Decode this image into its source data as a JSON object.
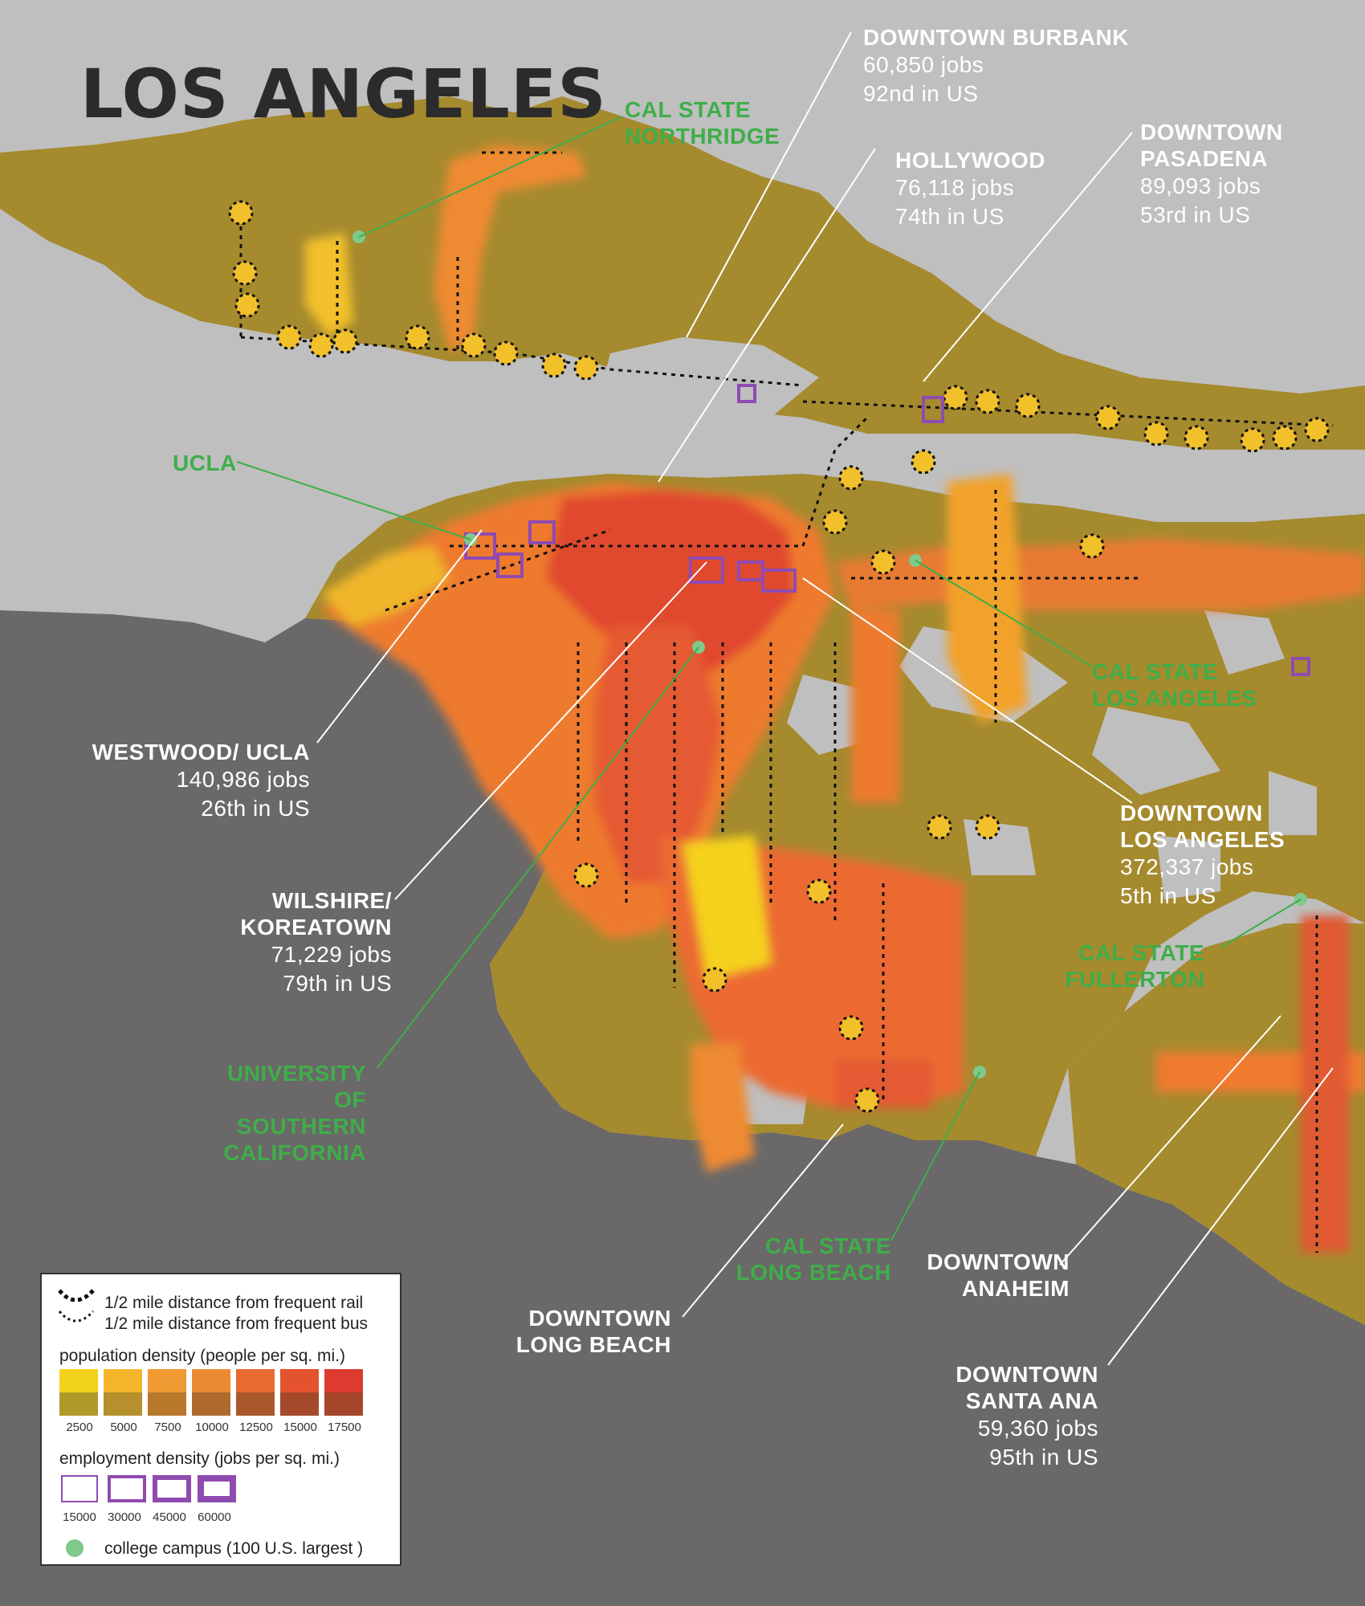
{
  "title": "LOS ANGELES",
  "labels": {
    "burbank": {
      "name": "DOWNTOWN BURBANK",
      "jobs": "60,850 jobs",
      "rank": "92nd in US"
    },
    "hollywood": {
      "name": "HOLLYWOOD",
      "jobs": "76,118 jobs",
      "rank": "74th in US"
    },
    "pasadena": {
      "name1": "DOWNTOWN",
      "name2": "PASADENA",
      "jobs": "89,093 jobs",
      "rank": "53rd in US"
    },
    "westwood": {
      "name": "WESTWOOD/ UCLA",
      "jobs": "140,986 jobs",
      "rank": "26th in US"
    },
    "wilshire": {
      "name1": "WILSHIRE/",
      "name2": "KOREATOWN",
      "jobs": "71,229 jobs",
      "rank": "79th in US"
    },
    "dtla": {
      "name1": "DOWNTOWN",
      "name2": "LOS ANGELES",
      "jobs": "372,337 jobs",
      "rank": "5th in US"
    },
    "longbeach": {
      "name1": "DOWNTOWN",
      "name2": "LONG BEACH"
    },
    "anaheim": {
      "name1": "DOWNTOWN",
      "name2": "ANAHEIM"
    },
    "santaana": {
      "name1": "DOWNTOWN",
      "name2": "SANTA ANA",
      "jobs": "59,360 jobs",
      "rank": "95th in US"
    }
  },
  "campuses": {
    "northridge": {
      "line1": "CAL STATE",
      "line2": "NORTHRIDGE"
    },
    "ucla": {
      "line1": "UCLA"
    },
    "csula": {
      "line1": "CAL STATE",
      "line2": "LOS ANGELES"
    },
    "fullerton": {
      "line1": "CAL STATE",
      "line2": "FULLERTON"
    },
    "usc": {
      "line1": "UNIVERSITY",
      "line2": "OF",
      "line3": "SOUTHERN",
      "line4": "CALIFORNIA"
    },
    "csulb": {
      "line1": "CAL STATE",
      "line2": "LONG BEACH"
    }
  },
  "legend": {
    "rail": "1/2 mile distance from frequent rail",
    "bus": "1/2 mile distance from frequent bus",
    "pop_title": "population density (people per sq. mi.)",
    "pop_values": [
      "2500",
      "5000",
      "7500",
      "10000",
      "12500",
      "15000",
      "17500"
    ],
    "pop_colors_top": [
      "#f3d21c",
      "#f5b52a",
      "#ef9a32",
      "#ec8a33",
      "#e86a33",
      "#e5522f",
      "#dd3a30"
    ],
    "pop_colors_bottom": [
      "#b09a2a",
      "#b5902c",
      "#b7782c",
      "#ad6a2c",
      "#a9582c",
      "#a5492b",
      "#a5452b"
    ],
    "emp_title": "employment density (jobs per sq. mi.)",
    "emp_values": [
      "15000",
      "30000",
      "45000",
      "60000"
    ],
    "campus": "college campus (100 U.S. largest )"
  },
  "colors": {
    "land": "#bfbfbf",
    "ocean": "#6a6868",
    "low_density": "#a58a2e",
    "high_density": "#e0452e",
    "employment": "#8f4bb0",
    "campus": "#7fc98a",
    "campus_text": "#3fae49"
  }
}
